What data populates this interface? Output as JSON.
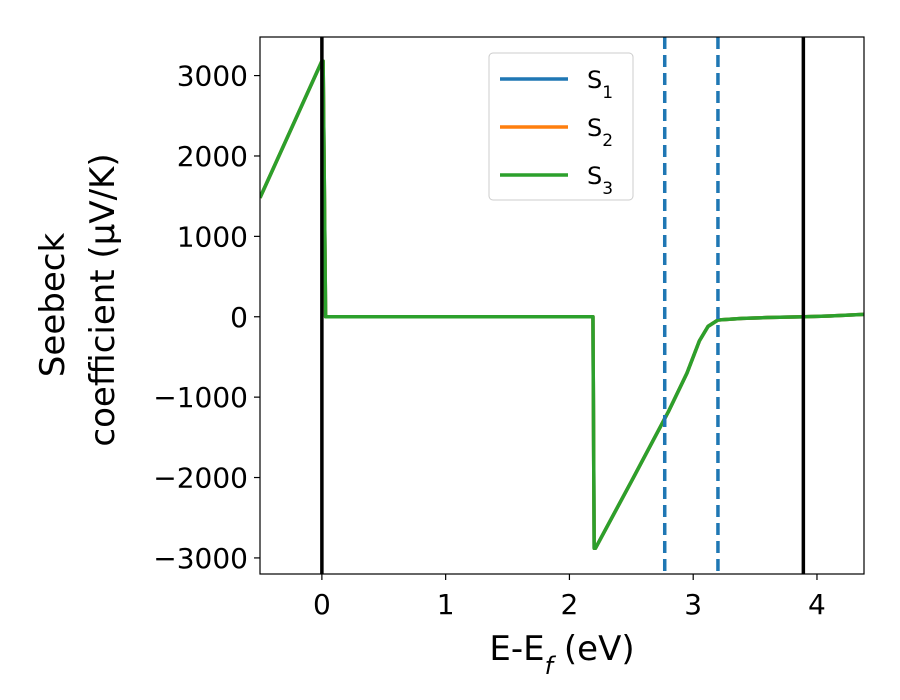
{
  "chart_data": {
    "type": "line",
    "xlabel": "E-E",
    "xlabel_sub": "f",
    "xlabel_unit": " (eV)",
    "ylabel_line1": "Seebeck",
    "ylabel_line2": "coefficient  (μV/K)",
    "xlim": [
      -0.5,
      4.38
    ],
    "ylim": [
      -3200,
      3480
    ],
    "xticks": [
      0,
      1,
      2,
      3,
      4
    ],
    "xtick_labels": [
      "0",
      "1",
      "2",
      "3",
      "4"
    ],
    "yticks": [
      3000,
      2000,
      1000,
      0,
      -1000,
      -2000,
      -3000
    ],
    "ytick_labels": [
      "3000",
      "2000",
      "1000",
      "0",
      "−1000",
      "−2000",
      "−3000"
    ],
    "grid": false,
    "legend_position": "upper-center",
    "series": [
      {
        "name": "S",
        "name_sub": "1",
        "color": "#1f77b4",
        "x": [
          -0.5,
          0.0,
          0.01,
          0.03,
          2.19,
          2.2,
          2.21,
          2.5,
          2.8,
          2.95,
          3.05,
          3.12,
          3.2,
          3.4,
          3.6,
          3.9,
          4.1,
          4.38
        ],
        "y": [
          1480,
          3180,
          3180,
          0,
          0,
          -2880,
          -2880,
          -2050,
          -1180,
          -700,
          -300,
          -120,
          -40,
          -20,
          -10,
          0,
          10,
          30
        ]
      },
      {
        "name": "S",
        "name_sub": "2",
        "color": "#ff7f0e",
        "x": [
          -0.5,
          0.0,
          0.01,
          0.03,
          2.19,
          2.2,
          2.21,
          2.5,
          2.8,
          2.95,
          3.05,
          3.12,
          3.2,
          3.4,
          3.6,
          3.9,
          4.1,
          4.38
        ],
        "y": [
          1480,
          3180,
          3180,
          0,
          0,
          -2880,
          -2880,
          -2050,
          -1180,
          -700,
          -300,
          -120,
          -40,
          -20,
          -10,
          0,
          10,
          30
        ]
      },
      {
        "name": "S",
        "name_sub": "3",
        "color": "#2ca02c",
        "x": [
          -0.5,
          0.0,
          0.01,
          0.03,
          2.19,
          2.2,
          2.21,
          2.5,
          2.8,
          2.95,
          3.05,
          3.12,
          3.2,
          3.4,
          3.6,
          3.9,
          4.1,
          4.38
        ],
        "y": [
          1480,
          3180,
          3180,
          0,
          0,
          -2880,
          -2880,
          -2050,
          -1180,
          -700,
          -300,
          -120,
          -40,
          -20,
          -10,
          0,
          10,
          30
        ]
      }
    ],
    "vlines": [
      {
        "x": 0.0,
        "color": "#000000",
        "style": "solid"
      },
      {
        "x": 3.89,
        "color": "#000000",
        "style": "solid"
      },
      {
        "x": 2.77,
        "color": "#1f77b4",
        "style": "dashed"
      },
      {
        "x": 3.2,
        "color": "#1f77b4",
        "style": "dashed"
      }
    ]
  }
}
